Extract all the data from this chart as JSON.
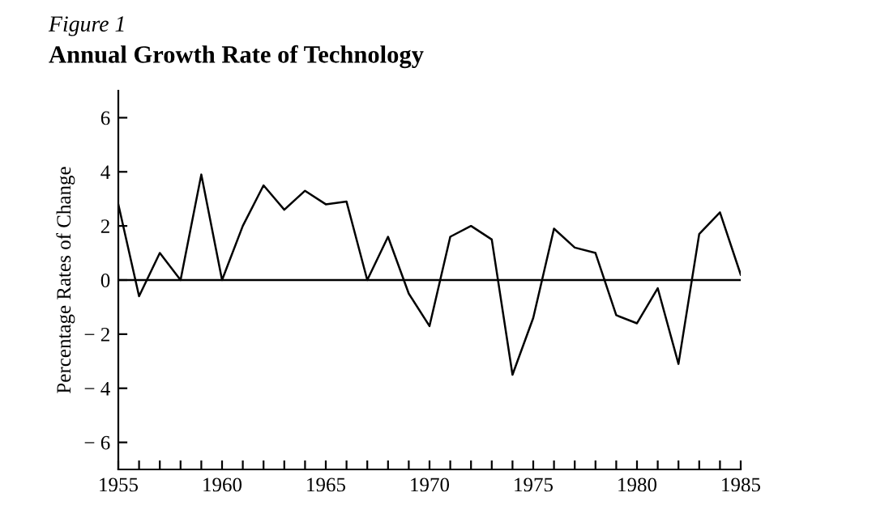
{
  "chart_data": {
    "type": "line",
    "title": "Annual Growth Rate of Technology",
    "annotations": [
      "Figure 1"
    ],
    "ylabel": "Percentage Rates of Change",
    "x": [
      1955,
      1956,
      1957,
      1958,
      1959,
      1960,
      1961,
      1962,
      1963,
      1964,
      1965,
      1966,
      1967,
      1968,
      1969,
      1970,
      1971,
      1972,
      1973,
      1974,
      1975,
      1976,
      1977,
      1978,
      1979,
      1980,
      1981,
      1982,
      1983,
      1984,
      1985
    ],
    "series": [
      {
        "color": "#000000",
        "values": [
          2.8,
          -0.6,
          1.0,
          0.0,
          3.9,
          0.0,
          2.0,
          3.5,
          2.6,
          3.3,
          2.8,
          2.9,
          0.0,
          1.6,
          -0.5,
          -1.7,
          1.6,
          2.0,
          1.5,
          -3.5,
          -1.4,
          1.9,
          1.2,
          1.0,
          -1.3,
          -1.6,
          -0.3,
          -3.1,
          1.7,
          2.5,
          0.2
        ]
      }
    ],
    "xlim": [
      1955,
      1985
    ],
    "xticks": [
      1955,
      {
        "value": 1956,
        "label": null
      },
      {
        "value": 1957,
        "label": null
      },
      {
        "value": 1958,
        "label": null
      },
      {
        "value": 1959,
        "label": null
      },
      1960,
      {
        "value": 1961,
        "label": null
      },
      {
        "value": 1962,
        "label": null
      },
      {
        "value": 1963,
        "label": null
      },
      {
        "value": 1964,
        "label": null
      },
      1965,
      {
        "value": 1966,
        "label": null
      },
      {
        "value": 1967,
        "label": null
      },
      {
        "value": 1968,
        "label": null
      },
      {
        "value": 1969,
        "label": null
      },
      1970,
      {
        "value": 1971,
        "label": null
      },
      {
        "value": 1972,
        "label": null
      },
      {
        "value": 1973,
        "label": null
      },
      {
        "value": 1974,
        "label": null
      },
      1975,
      {
        "value": 1976,
        "label": null
      },
      {
        "value": 1977,
        "label": null
      },
      {
        "value": 1978,
        "label": null
      },
      {
        "value": 1979,
        "label": null
      },
      1980,
      {
        "value": 1981,
        "label": null
      },
      {
        "value": 1982,
        "label": null
      },
      {
        "value": 1983,
        "label": null
      },
      {
        "value": 1984,
        "label": null
      },
      1985
    ],
    "ylim": [
      -7,
      7
    ],
    "yticks": [
      {
        "value": -6,
        "label": "− 6"
      },
      {
        "value": -4,
        "label": "− 4"
      },
      {
        "value": -2,
        "label": "− 2"
      },
      0,
      2,
      4,
      6
    ],
    "ref_lines": [
      {
        "axis": "y",
        "value": 0,
        "color": "#000000"
      }
    ],
    "grid": false,
    "legend": false,
    "marker": "none",
    "line_style": "solid"
  }
}
